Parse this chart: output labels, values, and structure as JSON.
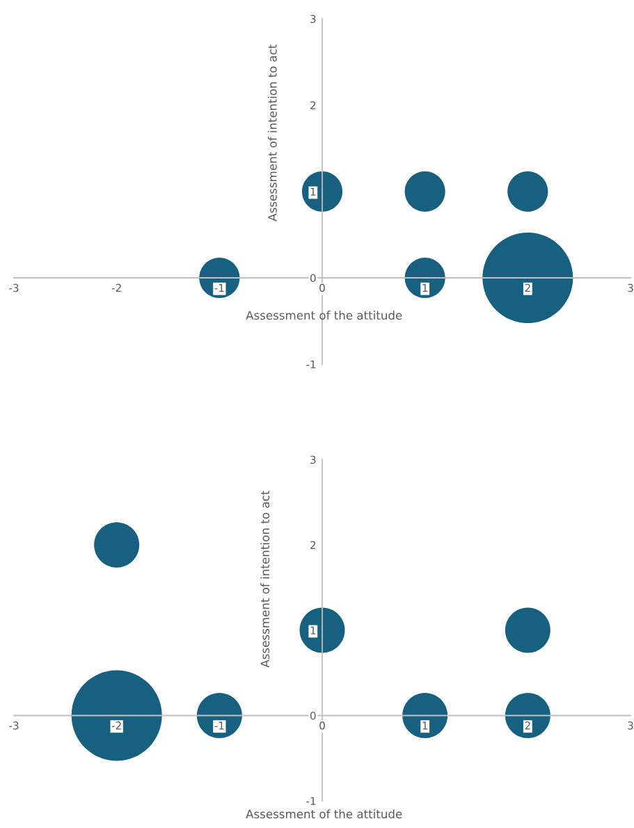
{
  "chart_data": [
    {
      "type": "bubble",
      "xlabel": "Assessment of the attitude",
      "ylabel": "Assessment of intention to act",
      "xlim": [
        -3,
        3
      ],
      "ylim": [
        -1,
        3
      ],
      "xticks": [
        -3,
        -2,
        -1,
        0,
        1,
        2,
        3
      ],
      "yticks": [
        -1,
        0,
        1,
        2,
        3
      ],
      "grid": false,
      "relative": false,
      "series": [
        {
          "color": "#17607f",
          "x": [
            -1,
            0,
            1,
            2,
            1,
            2
          ],
          "values": [
            0,
            1,
            1,
            1,
            0,
            0
          ],
          "sizes": [
            0.2,
            0.2,
            0.2,
            0.2,
            0.2,
            1
          ]
        }
      ]
    },
    {
      "type": "bubble",
      "xlabel": "Assessment of the attitude",
      "ylabel": "Assessment of intention to act",
      "xlim": [
        -3,
        3
      ],
      "ylim": [
        -1,
        3
      ],
      "xticks": [
        -3,
        -2,
        -1,
        0,
        1,
        2,
        3
      ],
      "yticks": [
        -1,
        0,
        1,
        2,
        3
      ],
      "grid": false,
      "relative": false,
      "series": [
        {
          "color": "#17607f",
          "x": [
            -2,
            0,
            2,
            -2,
            -1,
            1,
            2
          ],
          "values": [
            2,
            1,
            1,
            0,
            0,
            0,
            0
          ],
          "sizes": [
            0.25,
            0.25,
            0.25,
            1,
            0.25,
            0.25,
            0.25
          ]
        }
      ]
    }
  ]
}
